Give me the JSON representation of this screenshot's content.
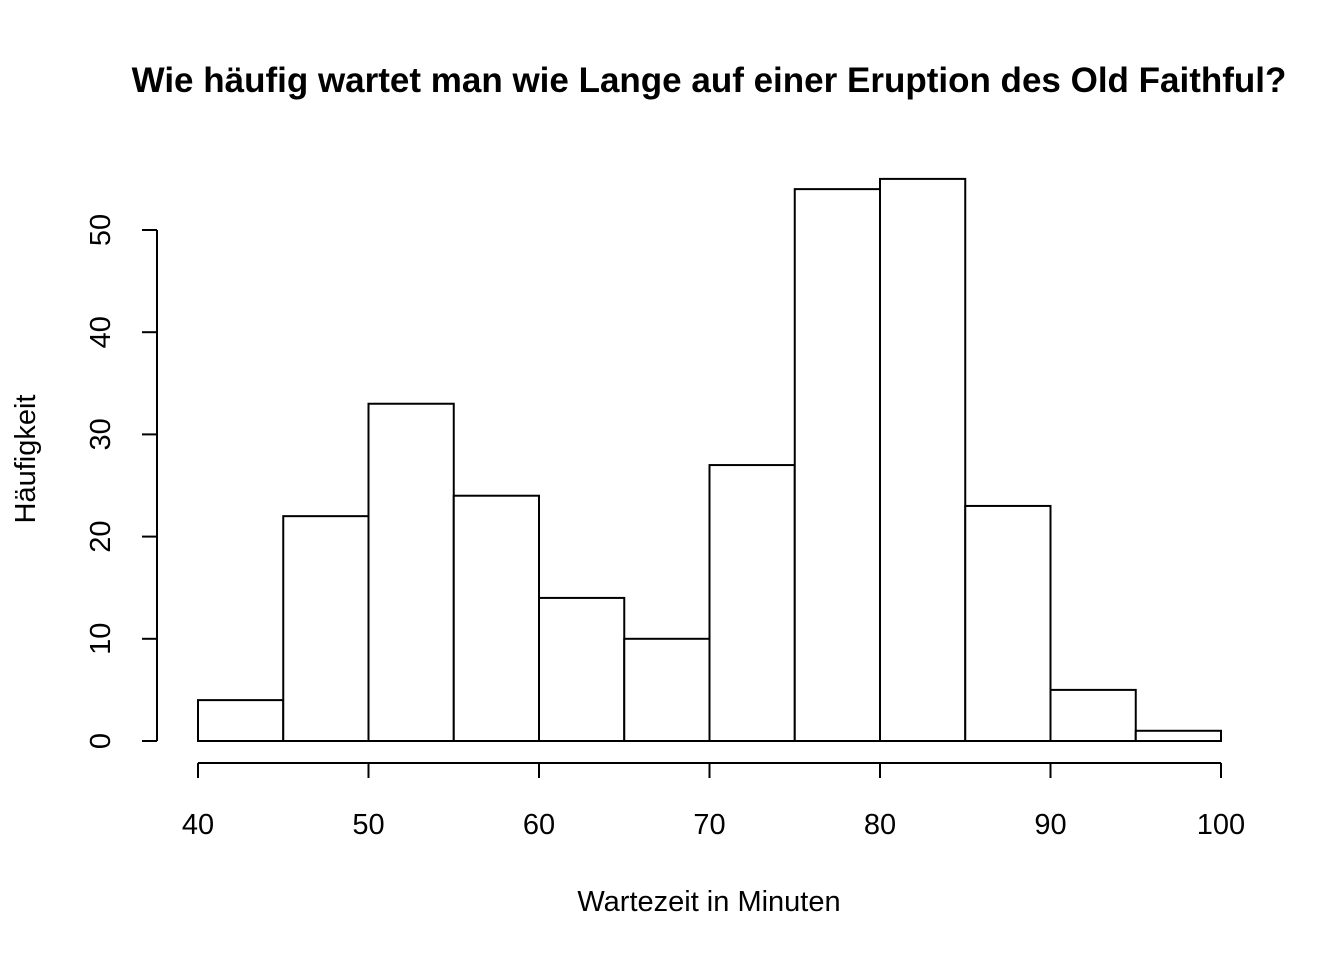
{
  "chart_data": {
    "type": "bar",
    "title": "Wie häufig wartet man wie Lange auf einer Eruption des Old Faithful?",
    "xlabel": "Wartezeit in Minuten",
    "ylabel": "Häufigkeit",
    "bins": [
      {
        "from": 40,
        "to": 45,
        "count": 4
      },
      {
        "from": 45,
        "to": 50,
        "count": 22
      },
      {
        "from": 50,
        "to": 55,
        "count": 33
      },
      {
        "from": 55,
        "to": 60,
        "count": 24
      },
      {
        "from": 60,
        "to": 65,
        "count": 14
      },
      {
        "from": 65,
        "to": 70,
        "count": 10
      },
      {
        "from": 70,
        "to": 75,
        "count": 27
      },
      {
        "from": 75,
        "to": 80,
        "count": 54
      },
      {
        "from": 80,
        "to": 85,
        "count": 55
      },
      {
        "from": 85,
        "to": 90,
        "count": 23
      },
      {
        "from": 90,
        "to": 95,
        "count": 5
      },
      {
        "from": 95,
        "to": 100,
        "count": 1
      }
    ],
    "xlim": [
      40,
      100
    ],
    "ylim": [
      0,
      55
    ],
    "xticks": [
      "40",
      "50",
      "60",
      "70",
      "80",
      "90",
      "100"
    ],
    "yticks": [
      "0",
      "10",
      "20",
      "30",
      "40",
      "50"
    ],
    "grid": false,
    "legend": "none"
  }
}
